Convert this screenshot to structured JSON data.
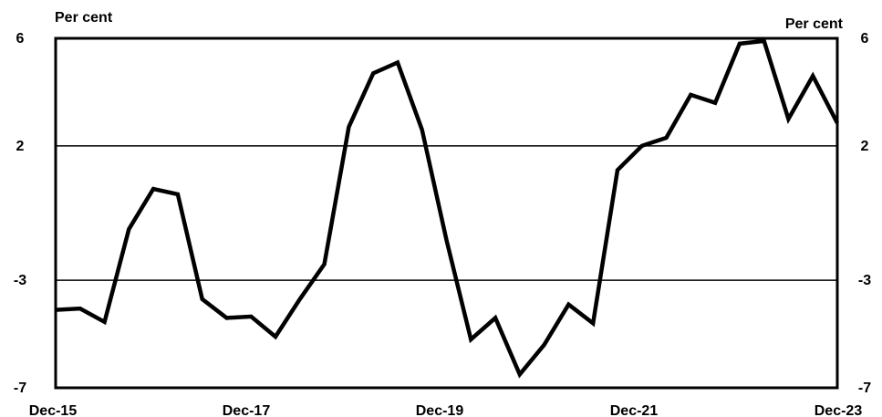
{
  "chart_data": {
    "type": "line",
    "title": "",
    "ylabel_left": "Per cent",
    "ylabel_right": "Per cent",
    "ylim": [
      -7,
      6
    ],
    "y_ticks": [
      6,
      2,
      -3,
      -7
    ],
    "x_tick_labels": [
      "Dec-15",
      "Dec-17",
      "Dec-19",
      "Dec-21",
      "Dec-23"
    ],
    "gridlines_at": [
      2,
      -3
    ],
    "line_color": "#000000",
    "series": [
      {
        "values": [
          -4.1,
          -4.05,
          -4.55,
          -1.1,
          0.4,
          0.2,
          -3.7,
          -4.4,
          -4.35,
          -5.1,
          -3.7,
          -2.4,
          2.7,
          4.7,
          5.1,
          2.6,
          -1.5,
          -5.2,
          -4.4,
          -6.5,
          -5.4,
          -3.9,
          -4.6,
          1.1,
          2.0,
          2.3,
          3.9,
          3.6,
          5.8,
          5.9,
          3.0,
          4.6,
          2.85
        ]
      }
    ]
  }
}
